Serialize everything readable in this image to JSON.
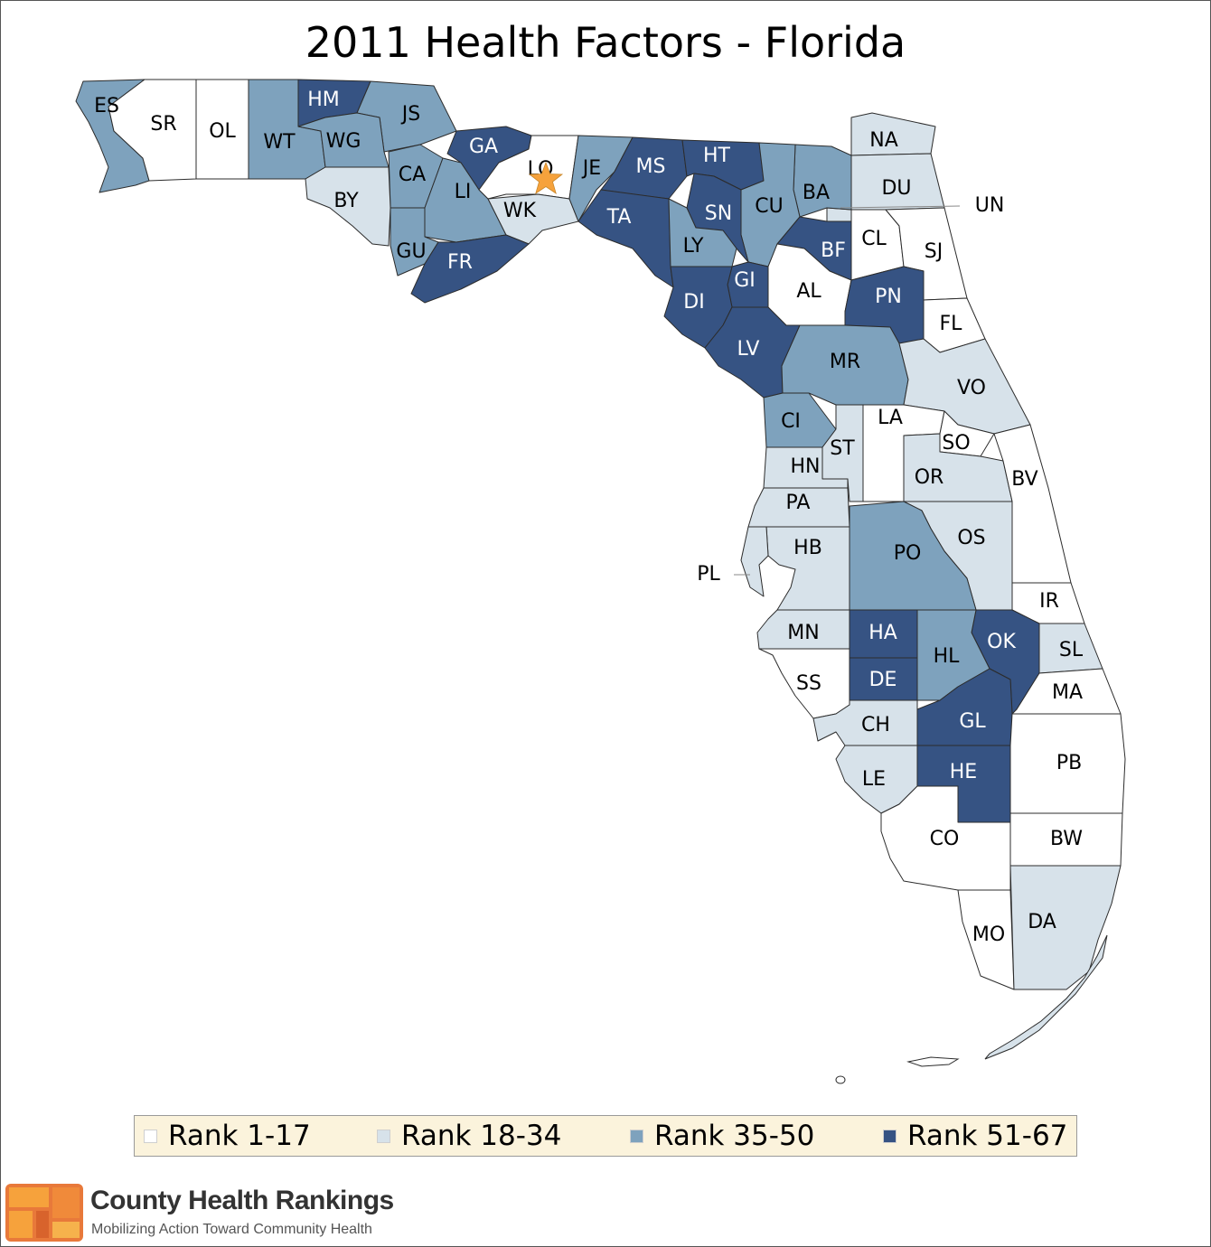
{
  "title": "2011 Health Factors - Florida",
  "colors": {
    "rank_1_17": "#ffffff",
    "rank_18_34": "#d7e2ea",
    "rank_35_50": "#7ea2bd",
    "rank_51_67": "#365383",
    "star": "#f6a23c"
  },
  "legend": [
    {
      "label": "Rank 1-17",
      "color": "#ffffff"
    },
    {
      "label": "Rank 18-34",
      "color": "#d7e2ea"
    },
    {
      "label": "Rank 35-50",
      "color": "#7ea2bd"
    },
    {
      "label": "Rank 51-67",
      "color": "#365383"
    }
  ],
  "counties": [
    {
      "code": "ES",
      "rank_group": "35-50"
    },
    {
      "code": "SR",
      "rank_group": "1-17"
    },
    {
      "code": "OL",
      "rank_group": "1-17"
    },
    {
      "code": "WT",
      "rank_group": "35-50"
    },
    {
      "code": "HM",
      "rank_group": "51-67"
    },
    {
      "code": "JS",
      "rank_group": "35-50"
    },
    {
      "code": "WG",
      "rank_group": "35-50"
    },
    {
      "code": "CA",
      "rank_group": "35-50"
    },
    {
      "code": "BY",
      "rank_group": "18-34"
    },
    {
      "code": "GA",
      "rank_group": "51-67"
    },
    {
      "code": "LI",
      "rank_group": "35-50"
    },
    {
      "code": "LO",
      "rank_group": "1-17"
    },
    {
      "code": "WK",
      "rank_group": "18-34"
    },
    {
      "code": "JE",
      "rank_group": "35-50"
    },
    {
      "code": "MS",
      "rank_group": "51-67"
    },
    {
      "code": "HT",
      "rank_group": "51-67"
    },
    {
      "code": "NA",
      "rank_group": "18-34"
    },
    {
      "code": "DU",
      "rank_group": "18-34"
    },
    {
      "code": "UN",
      "rank_group": "18-34"
    },
    {
      "code": "BA",
      "rank_group": "35-50"
    },
    {
      "code": "CU",
      "rank_group": "35-50"
    },
    {
      "code": "SN",
      "rank_group": "51-67"
    },
    {
      "code": "TA",
      "rank_group": "51-67"
    },
    {
      "code": "GU",
      "rank_group": "35-50"
    },
    {
      "code": "FR",
      "rank_group": "51-67"
    },
    {
      "code": "LY",
      "rank_group": "35-50"
    },
    {
      "code": "BF",
      "rank_group": "51-67"
    },
    {
      "code": "CL",
      "rank_group": "1-17"
    },
    {
      "code": "SJ",
      "rank_group": "1-17"
    },
    {
      "code": "GI",
      "rank_group": "51-67"
    },
    {
      "code": "AL",
      "rank_group": "1-17"
    },
    {
      "code": "DI",
      "rank_group": "51-67"
    },
    {
      "code": "PN",
      "rank_group": "51-67"
    },
    {
      "code": "FL",
      "rank_group": "1-17"
    },
    {
      "code": "LV",
      "rank_group": "51-67"
    },
    {
      "code": "MR",
      "rank_group": "35-50"
    },
    {
      "code": "VO",
      "rank_group": "18-34"
    },
    {
      "code": "CI",
      "rank_group": "35-50"
    },
    {
      "code": "LA",
      "rank_group": "1-17"
    },
    {
      "code": "SO",
      "rank_group": "1-17"
    },
    {
      "code": "ST",
      "rank_group": "18-34"
    },
    {
      "code": "HN",
      "rank_group": "18-34"
    },
    {
      "code": "OR",
      "rank_group": "18-34"
    },
    {
      "code": "BV",
      "rank_group": "1-17"
    },
    {
      "code": "PA",
      "rank_group": "18-34"
    },
    {
      "code": "OS",
      "rank_group": "18-34"
    },
    {
      "code": "HB",
      "rank_group": "18-34"
    },
    {
      "code": "PO",
      "rank_group": "35-50"
    },
    {
      "code": "PL",
      "rank_group": "18-34"
    },
    {
      "code": "IR",
      "rank_group": "1-17"
    },
    {
      "code": "MN",
      "rank_group": "18-34"
    },
    {
      "code": "HA",
      "rank_group": "51-67"
    },
    {
      "code": "OK",
      "rank_group": "51-67"
    },
    {
      "code": "HL",
      "rank_group": "35-50"
    },
    {
      "code": "SL",
      "rank_group": "18-34"
    },
    {
      "code": "SS",
      "rank_group": "1-17"
    },
    {
      "code": "DE",
      "rank_group": "51-67"
    },
    {
      "code": "MA",
      "rank_group": "1-17"
    },
    {
      "code": "GL",
      "rank_group": "51-67"
    },
    {
      "code": "CH",
      "rank_group": "18-34"
    },
    {
      "code": "PB",
      "rank_group": "1-17"
    },
    {
      "code": "HE",
      "rank_group": "51-67"
    },
    {
      "code": "LE",
      "rank_group": "18-34"
    },
    {
      "code": "CO",
      "rank_group": "1-17"
    },
    {
      "code": "BW",
      "rank_group": "1-17"
    },
    {
      "code": "MO",
      "rank_group": "1-17"
    },
    {
      "code": "DA",
      "rank_group": "18-34"
    }
  ],
  "highlight_marker": {
    "county": "LO",
    "icon": "star-icon"
  },
  "branding": {
    "name": "County Health Rankings",
    "tagline": "Mobilizing Action Toward Community Health",
    "logo_icon": "county-health-rankings-logo-icon"
  }
}
